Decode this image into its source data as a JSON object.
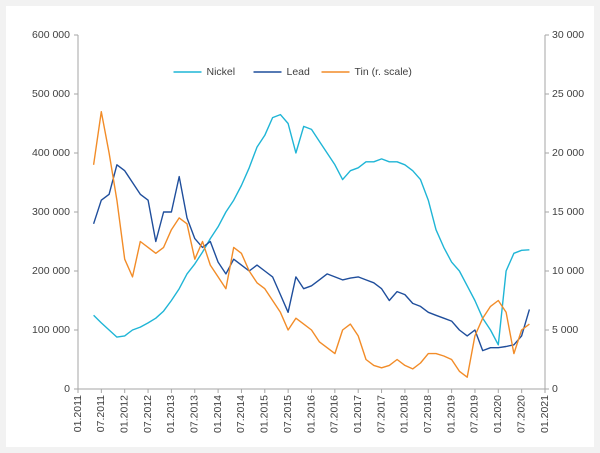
{
  "chart_data": {
    "type": "line",
    "x": [
      "2011-05",
      "2011-07",
      "2011-09",
      "2011-11",
      "2012-01",
      "2012-03",
      "2012-05",
      "2012-07",
      "2012-09",
      "2012-11",
      "2013-01",
      "2013-03",
      "2013-05",
      "2013-07",
      "2013-09",
      "2013-11",
      "2014-01",
      "2014-03",
      "2014-05",
      "2014-07",
      "2014-09",
      "2014-11",
      "2015-01",
      "2015-03",
      "2015-05",
      "2015-07",
      "2015-09",
      "2015-11",
      "2016-01",
      "2016-03",
      "2016-05",
      "2016-07",
      "2016-09",
      "2016-11",
      "2017-01",
      "2017-03",
      "2017-05",
      "2017-07",
      "2017-09",
      "2017-11",
      "2018-01",
      "2018-03",
      "2018-05",
      "2018-07",
      "2018-09",
      "2018-11",
      "2019-01",
      "2019-03",
      "2019-05",
      "2019-07",
      "2019-09",
      "2019-11",
      "2020-01",
      "2020-03",
      "2020-05",
      "2020-07",
      "2020-09"
    ],
    "series": [
      {
        "name": "Nickel",
        "color": "#1fb5d6",
        "axis": "y",
        "values": [
          125000,
          112000,
          100000,
          88000,
          90000,
          100000,
          105000,
          112000,
          120000,
          132000,
          150000,
          170000,
          195000,
          212000,
          232000,
          255000,
          275000,
          300000,
          320000,
          345000,
          375000,
          410000,
          430000,
          460000,
          465000,
          450000,
          400000,
          445000,
          440000,
          420000,
          400000,
          380000,
          355000,
          370000,
          375000,
          385000,
          385000,
          390000,
          385000,
          385000,
          380000,
          370000,
          355000,
          320000,
          270000,
          240000,
          215000,
          200000,
          175000,
          150000,
          120000,
          100000,
          75000,
          200000,
          230000,
          235000,
          236000
        ]
      },
      {
        "name": "Lead",
        "color": "#1f4e9c",
        "axis": "y",
        "values": [
          280000,
          320000,
          330000,
          380000,
          370000,
          350000,
          330000,
          320000,
          250000,
          300000,
          300000,
          360000,
          290000,
          255000,
          240000,
          250000,
          215000,
          195000,
          220000,
          210000,
          200000,
          210000,
          200000,
          190000,
          160000,
          130000,
          190000,
          170000,
          175000,
          185000,
          195000,
          190000,
          185000,
          188000,
          190000,
          185000,
          180000,
          170000,
          150000,
          165000,
          160000,
          145000,
          140000,
          130000,
          125000,
          120000,
          115000,
          100000,
          90000,
          100000,
          65000,
          70000,
          70000,
          72000,
          75000,
          90000,
          135000
        ]
      },
      {
        "name": "Tin (r. scale)",
        "color": "#f28c28",
        "axis": "y2",
        "values": [
          19000,
          23500,
          20000,
          16000,
          11000,
          9500,
          12500,
          12000,
          11500,
          12000,
          13500,
          14500,
          14000,
          11000,
          12500,
          10500,
          9500,
          8500,
          12000,
          11500,
          10000,
          9000,
          8500,
          7500,
          6500,
          5000,
          6000,
          5500,
          5000,
          4000,
          3500,
          3000,
          5000,
          5500,
          4500,
          2500,
          2000,
          1800,
          2000,
          2500,
          2000,
          1700,
          2200,
          3000,
          3000,
          2800,
          2500,
          1500,
          1000,
          4500,
          6000,
          7000,
          7500,
          6500,
          3000,
          5000,
          5500
        ]
      }
    ],
    "xlim": [
      "2011-01",
      "2021-01"
    ],
    "xticks": [
      {
        "value": "2011-01",
        "label": "01.2011"
      },
      {
        "value": "2011-07",
        "label": "07.2011"
      },
      {
        "value": "2012-01",
        "label": "01.2012"
      },
      {
        "value": "2012-07",
        "label": "07.2012"
      },
      {
        "value": "2013-01",
        "label": "01.2013"
      },
      {
        "value": "2013-07",
        "label": "07.2013"
      },
      {
        "value": "2014-01",
        "label": "01.2014"
      },
      {
        "value": "2014-07",
        "label": "07.2014"
      },
      {
        "value": "2015-01",
        "label": "01.2015"
      },
      {
        "value": "2015-07",
        "label": "07.2015"
      },
      {
        "value": "2016-01",
        "label": "01.2016"
      },
      {
        "value": "2016-07",
        "label": "07.2016"
      },
      {
        "value": "2017-01",
        "label": "01.2017"
      },
      {
        "value": "2017-07",
        "label": "07.2017"
      },
      {
        "value": "2018-01",
        "label": "01.2018"
      },
      {
        "value": "2018-07",
        "label": "07.2018"
      },
      {
        "value": "2019-01",
        "label": "01.2019"
      },
      {
        "value": "2019-07",
        "label": "07.2019"
      },
      {
        "value": "2020-01",
        "label": "01.2020"
      },
      {
        "value": "2020-07",
        "label": "07.2020"
      },
      {
        "value": "2021-01",
        "label": "01.2021"
      }
    ],
    "ylim": [
      0,
      600000
    ],
    "yticks": [
      0,
      {
        "value": 100000,
        "label": "100 000"
      },
      {
        "value": 200000,
        "label": "200 000"
      },
      {
        "value": 300000,
        "label": "300 000"
      },
      {
        "value": 400000,
        "label": "400 000"
      },
      {
        "value": 500000,
        "label": "500 000"
      },
      {
        "value": 600000,
        "label": "600 000"
      }
    ],
    "y2lim": [
      0,
      30000
    ],
    "y2ticks": [
      0,
      {
        "value": 5000,
        "label": "5 000"
      },
      {
        "value": 10000,
        "label": "10 000"
      },
      {
        "value": 15000,
        "label": "15 000"
      },
      {
        "value": 20000,
        "label": "20 000"
      },
      {
        "value": 25000,
        "label": "25 000"
      },
      {
        "value": 30000,
        "label": "30 000"
      }
    ],
    "legend": "top",
    "grid": false
  }
}
